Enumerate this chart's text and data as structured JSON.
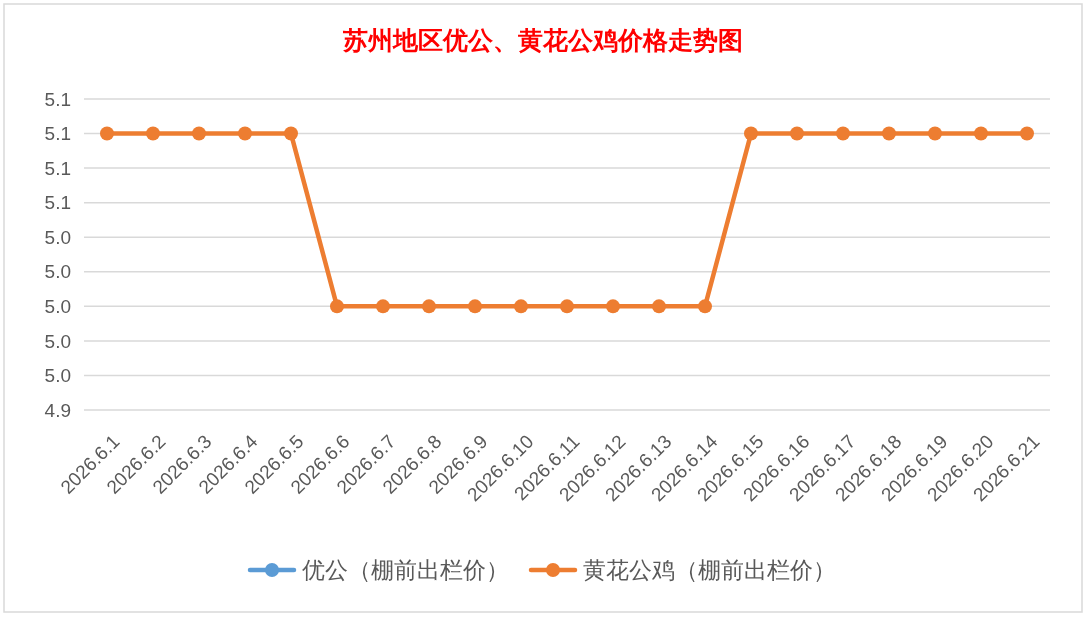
{
  "chart_data": {
    "type": "line",
    "title": "苏州地区优公、黄花公鸡价格走势图",
    "categories": [
      "2026.6.1",
      "2026.6.2",
      "2026.6.3",
      "2026.6.4",
      "2026.6.5",
      "2026.6.6",
      "2026.6.7",
      "2026.6.8",
      "2026.6.9",
      "2026.6.10",
      "2026.6.11",
      "2026.6.12",
      "2026.6.13",
      "2026.6.14",
      "2026.6.15",
      "2026.6.16",
      "2026.6.17",
      "2026.6.18",
      "2026.6.19",
      "2026.6.20",
      "2026.6.21"
    ],
    "series": [
      {
        "name": "优公（棚前出栏价）",
        "color": "#5b9bd5",
        "values": [
          null,
          null,
          null,
          null,
          null,
          null,
          null,
          null,
          null,
          null,
          null,
          null,
          null,
          null,
          null,
          null,
          null,
          null,
          null,
          null,
          null
        ]
      },
      {
        "name": "黄花公鸡（棚前出栏价）",
        "color": "#ed7d31",
        "values": [
          5.1,
          5.1,
          5.1,
          5.1,
          5.1,
          5.0,
          5.0,
          5.0,
          5.0,
          5.0,
          5.0,
          5.0,
          5.0,
          5.0,
          5.1,
          5.1,
          5.1,
          5.1,
          5.1,
          5.1,
          5.1
        ]
      }
    ],
    "ylim": [
      4.94,
      5.12
    ],
    "yticks": [
      {
        "value": 4.94,
        "label": "4.9"
      },
      {
        "value": 4.96,
        "label": "5.0"
      },
      {
        "value": 4.98,
        "label": "5.0"
      },
      {
        "value": 5.0,
        "label": "5.0"
      },
      {
        "value": 5.02,
        "label": "5.0"
      },
      {
        "value": 5.04,
        "label": "5.0"
      },
      {
        "value": 5.06,
        "label": "5.1"
      },
      {
        "value": 5.08,
        "label": "5.1"
      },
      {
        "value": 5.1,
        "label": "5.1"
      },
      {
        "value": 5.12,
        "label": "5.1"
      }
    ],
    "grid": "y",
    "legend": "bottom",
    "marker": "circle",
    "line_style": "solid"
  }
}
